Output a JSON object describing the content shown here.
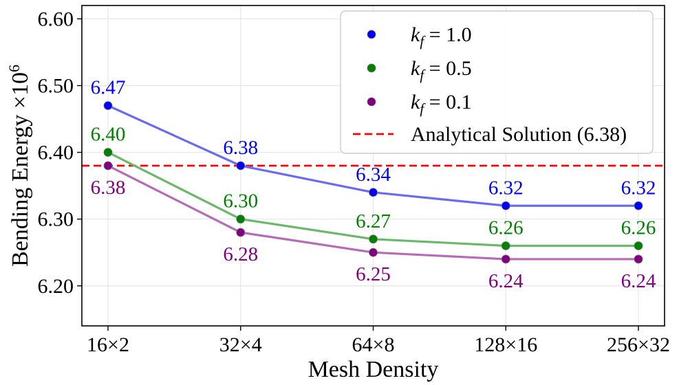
{
  "chart_data": {
    "type": "line",
    "title": "",
    "xlabel": "Mesh Density",
    "ylabel": "Bending Energy ×10",
    "ylabel_exponent": "6",
    "categories": [
      "16×2",
      "32×4",
      "64×8",
      "128×16",
      "256×32"
    ],
    "ylim": [
      6.14,
      6.62
    ],
    "yticks": [
      6.2,
      6.3,
      6.4,
      6.5,
      6.6
    ],
    "ytick_labels": [
      "6.20",
      "6.30",
      "6.40",
      "6.50",
      "6.60"
    ],
    "grid": true,
    "legend_position": "top-right",
    "series": [
      {
        "name": "kf = 1.0",
        "legend_k": "k",
        "legend_sub": "f",
        "legend_eq": " = 1.0",
        "values": [
          6.47,
          6.38,
          6.34,
          6.32,
          6.32
        ],
        "labels": [
          "6.47",
          "6.38",
          "6.34",
          "6.32",
          "6.32"
        ],
        "label_side": "above",
        "color": "#0000ff",
        "line_color": "#6b6bf0"
      },
      {
        "name": "kf = 0.5",
        "legend_k": "k",
        "legend_sub": "f",
        "legend_eq": " = 0.5",
        "values": [
          6.4,
          6.3,
          6.27,
          6.26,
          6.26
        ],
        "labels": [
          "6.40",
          "6.30",
          "6.27",
          "6.26",
          "6.26"
        ],
        "label_side": "above",
        "color": "#008000",
        "line_color": "#6bb86b"
      },
      {
        "name": "kf = 0.1",
        "legend_k": "k",
        "legend_sub": "f",
        "legend_eq": " = 0.1",
        "values": [
          6.38,
          6.28,
          6.25,
          6.24,
          6.24
        ],
        "labels": [
          "6.38",
          "6.28",
          "6.25",
          "6.24",
          "6.24"
        ],
        "label_side": "below",
        "color": "#800080",
        "line_color": "#b56bb5"
      }
    ],
    "reference_line": {
      "name": "Analytical Solution (6.38)",
      "value": 6.38,
      "color": "#ff0000",
      "style": "dashed"
    }
  }
}
